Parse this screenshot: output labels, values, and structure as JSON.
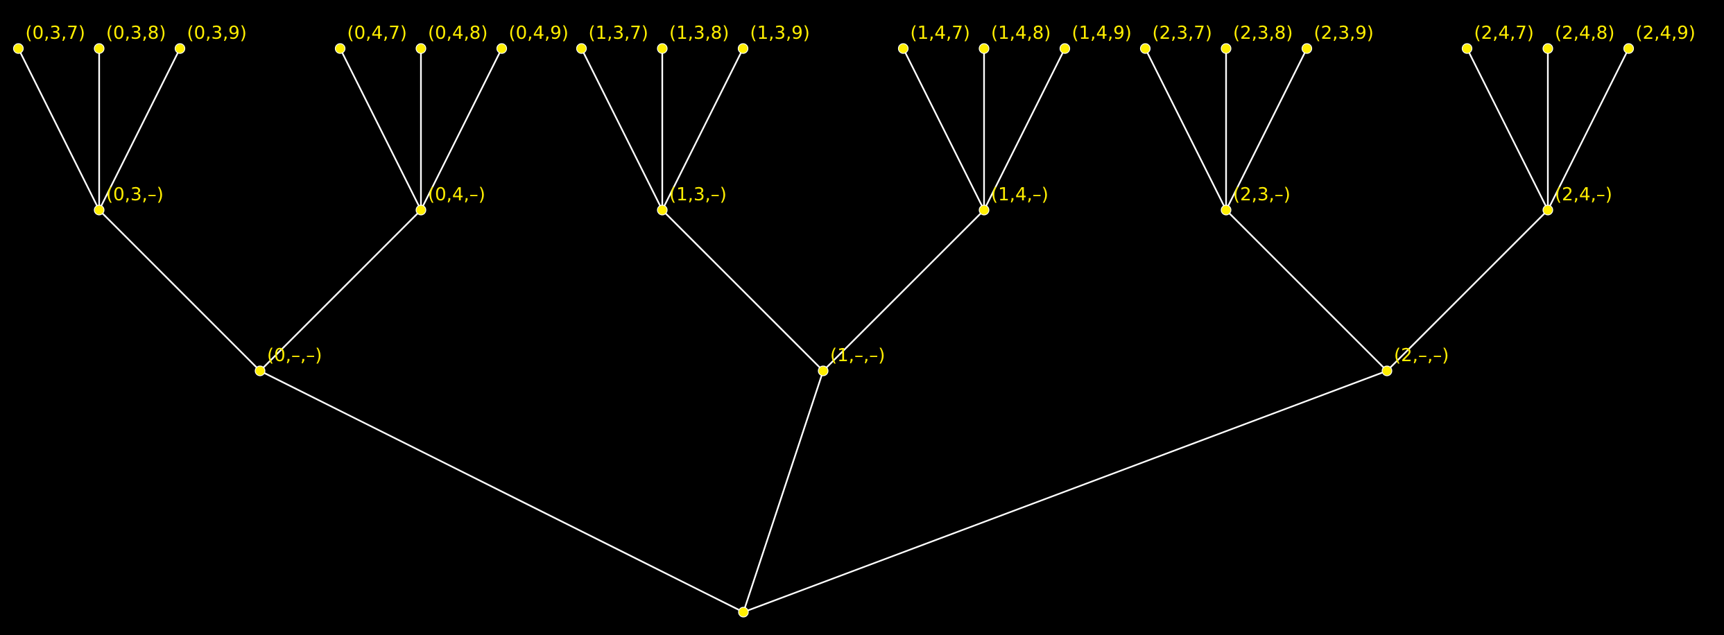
{
  "colors": {
    "background": "#000000",
    "edge": "#ffffff",
    "node": "#ffee00",
    "label": "#ffee00"
  },
  "tree": {
    "root": {
      "label": ""
    },
    "branches": [
      {
        "label": "(0,–,–)",
        "children": [
          {
            "label": "(0,3,–)",
            "leaves": [
              "(0,3,7)",
              "(0,3,8)",
              "(0,3,9)"
            ]
          },
          {
            "label": "(0,4,–)",
            "leaves": [
              "(0,4,7)",
              "(0,4,8)",
              "(0,4,9)"
            ]
          }
        ]
      },
      {
        "label": "(1,–,–)",
        "children": [
          {
            "label": "(1,3,–)",
            "leaves": [
              "(1,3,7)",
              "(1,3,8)",
              "(1,3,9)"
            ]
          },
          {
            "label": "(1,4,–)",
            "leaves": [
              "(1,4,7)",
              "(1,4,8)",
              "(1,4,9)"
            ]
          }
        ]
      },
      {
        "label": "(2,–,–)",
        "children": [
          {
            "label": "(2,3,–)",
            "leaves": [
              "(2,3,7)",
              "(2,3,8)",
              "(2,3,9)"
            ]
          },
          {
            "label": "(2,4,–)",
            "leaves": [
              "(2,4,7)",
              "(2,4,8)",
              "(2,4,9)"
            ]
          }
        ]
      }
    ]
  }
}
